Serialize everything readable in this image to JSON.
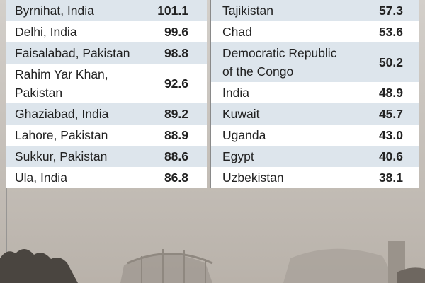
{
  "cities": {
    "rows": [
      [
        "Byrnihat, India",
        "101.1"
      ],
      [
        "Delhi, India",
        "99.6"
      ],
      [
        "Faisalabad, Pakistan",
        "98.8"
      ],
      [
        "Rahim Yar Khan, Pakistan",
        "92.6"
      ],
      [
        "Ghaziabad, India",
        "89.2"
      ],
      [
        "Lahore, Pakistan",
        "88.9"
      ],
      [
        "Sukkur, Pakistan",
        "88.6"
      ],
      [
        "Ula, India",
        "86.8"
      ]
    ]
  },
  "countries": {
    "rows": [
      [
        "Tajikistan",
        "57.3"
      ],
      [
        "Chad",
        "53.6"
      ],
      [
        "Democratic Republic of the Congo",
        "50.2"
      ],
      [
        "India",
        "48.9"
      ],
      [
        "Kuwait",
        "45.7"
      ],
      [
        "Uganda",
        "43.0"
      ],
      [
        "Egypt",
        "40.6"
      ],
      [
        "Uzbekistan",
        "38.1"
      ]
    ]
  }
}
